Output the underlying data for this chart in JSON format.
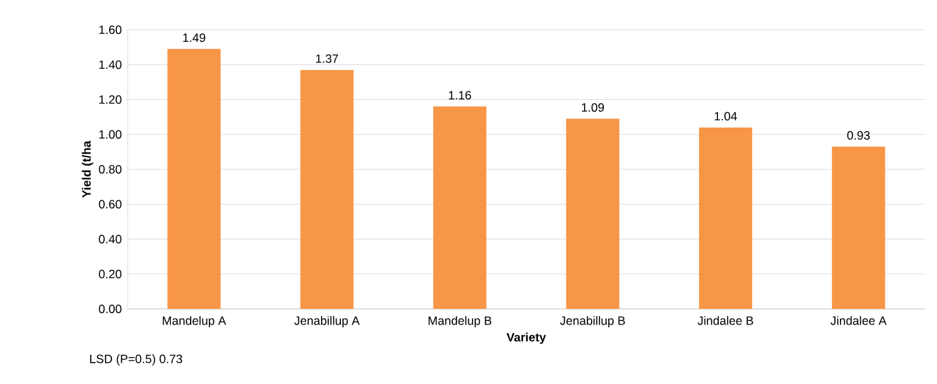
{
  "chart_data": {
    "type": "bar",
    "xlabel": "Variety",
    "ylabel": "Yield (t/ha",
    "categories": [
      "Mandelup A",
      "Jenabillup A",
      "Mandelup B",
      "Jenabillup B",
      "Jindalee B",
      "Jindalee A"
    ],
    "values": [
      1.49,
      1.37,
      1.16,
      1.09,
      1.04,
      0.93
    ],
    "color": "#f79646",
    "ylim": [
      0,
      1.6
    ],
    "yticks": [
      {
        "value": 0,
        "label": "0.00"
      },
      {
        "value": 0.2,
        "label": "0.20"
      },
      {
        "value": 0.4,
        "label": "0.40"
      },
      {
        "value": 0.6,
        "label": "0.60"
      },
      {
        "value": 0.8,
        "label": "0.80"
      },
      {
        "value": 1.0,
        "label": "1.00"
      },
      {
        "value": 1.2,
        "label": "1.20"
      },
      {
        "value": 1.4,
        "label": "1.40"
      },
      {
        "value": 1.6,
        "label": "1.60"
      }
    ],
    "grid": "y",
    "data_labels": true,
    "annotations": [
      "LSD (P=0.5) 0.73"
    ]
  }
}
